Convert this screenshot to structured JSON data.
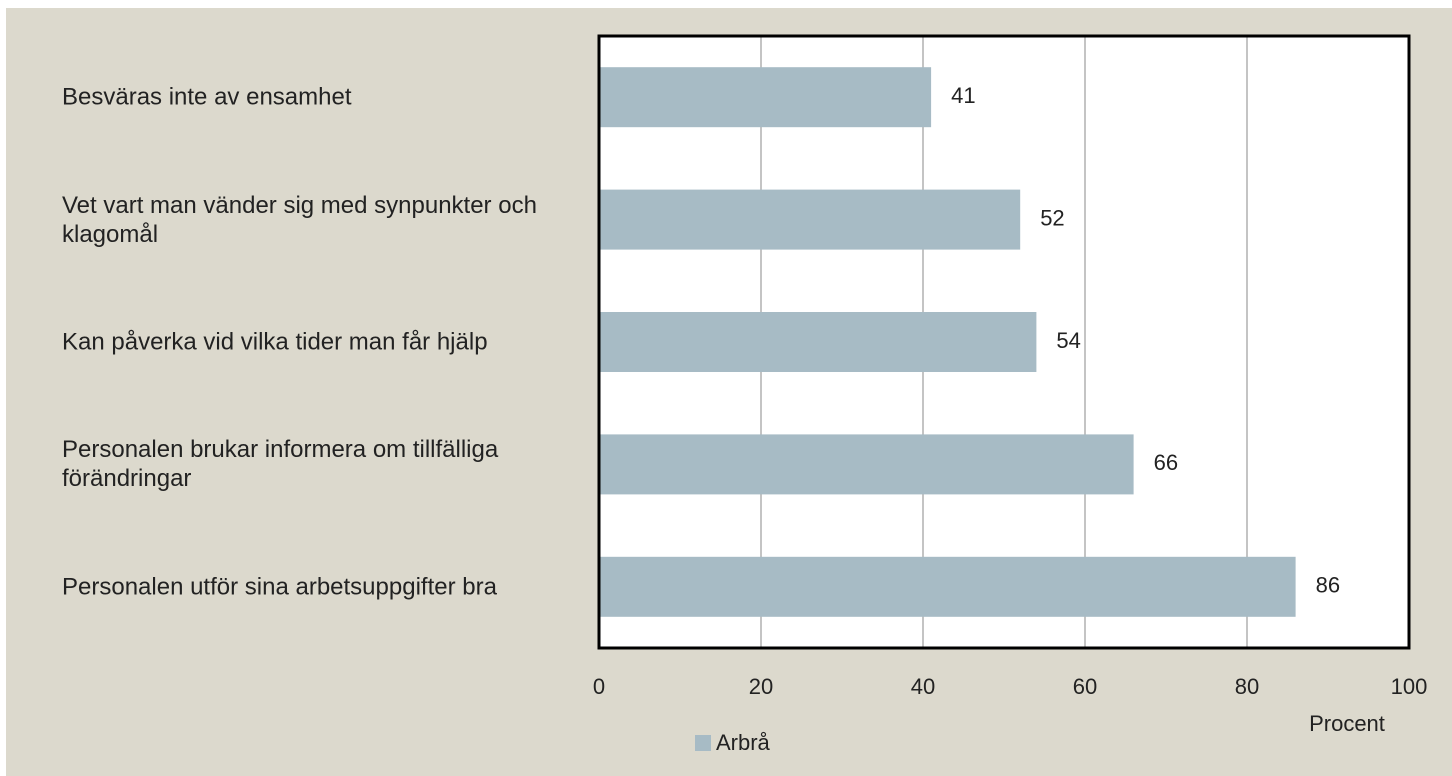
{
  "chart_data": {
    "type": "barh",
    "categories": [
      "Besväras inte av ensamhet",
      "Vet vart man vänder sig med synpunkter och klagomål",
      "Kan påverka vid vilka tider man får hjälp",
      "Personalen brukar informera om tillfälliga förändringar",
      "Personalen utför sina arbetsuppgifter bra"
    ],
    "series": [
      {
        "name": "Arbrå",
        "color": "#a7bbc5",
        "values": [
          41,
          52,
          54,
          66,
          86
        ]
      }
    ],
    "xlim": [
      0,
      100
    ],
    "xticks": [
      0,
      20,
      40,
      60,
      80,
      100
    ],
    "xlabel": "Procent",
    "grid": true,
    "legend": "bottom"
  }
}
